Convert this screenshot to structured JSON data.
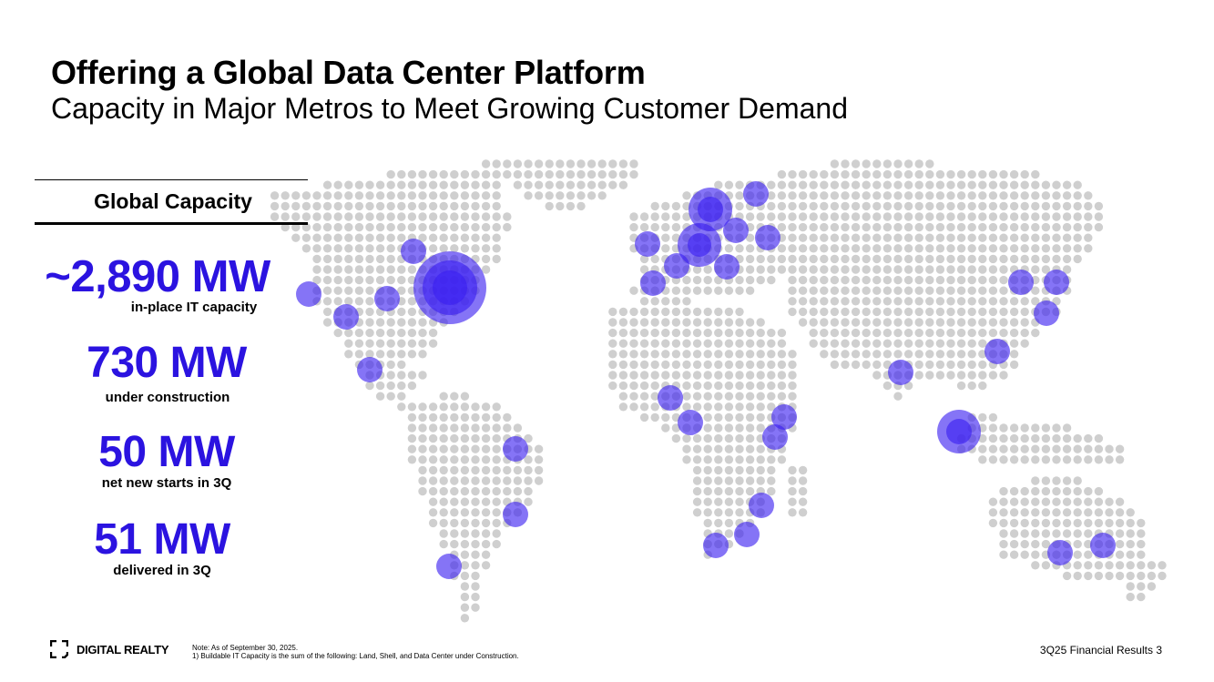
{
  "header": {
    "title": "Offering a Global Data Center Platform",
    "subtitle": "Capacity in Major Metros to Meet Growing Customer Demand"
  },
  "capacity_panel": {
    "heading": "Global Capacity",
    "stats": [
      {
        "value": "~2,890 MW",
        "label": "in-place IT capacity"
      },
      {
        "value": "730 MW",
        "label": "under construction"
      },
      {
        "value": "50 MW",
        "label": "net new starts in 3Q"
      },
      {
        "value": "51 MW",
        "label": "delivered in 3Q"
      }
    ]
  },
  "map": {
    "dot_color": "#cfcfcf",
    "marker_color": "#3a1ff0"
  },
  "footer": {
    "logo_text": "DIGITAL REALTY",
    "note_line1": "Note: As of September 30, 2025.",
    "note_line2": "1) Buildable IT Capacity is the sum of the following: Land, Shell, and Data Center under Construction.",
    "results_label": "3Q25 Financial Results",
    "page_number": "3"
  },
  "colors": {
    "accent": "#2b13e0",
    "text": "#000000"
  }
}
